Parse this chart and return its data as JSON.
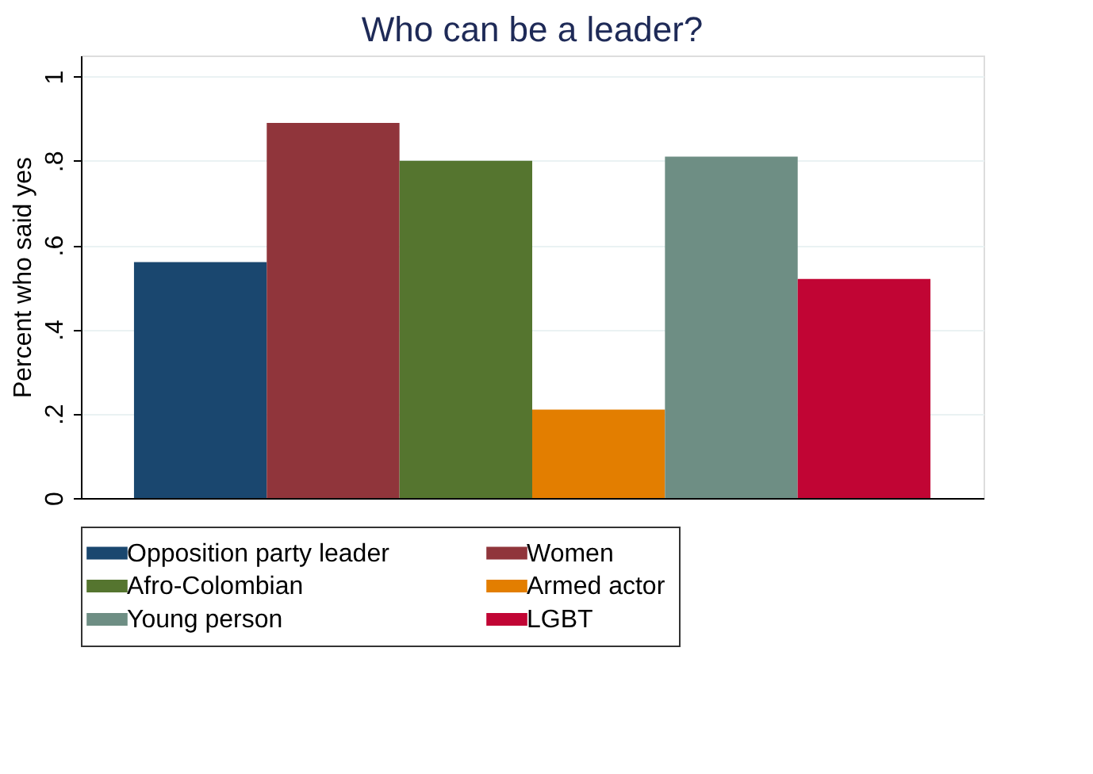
{
  "chart_data": {
    "type": "bar",
    "title": "Who can be a leader?",
    "ylabel": "Percent who said yes",
    "categories": [
      null
    ],
    "series": [
      {
        "name": "Opposition party leader",
        "color": "#1a476f",
        "values": [
          0.56
        ]
      },
      {
        "name": "Women",
        "color": "#90353b",
        "values": [
          0.89
        ]
      },
      {
        "name": "Afro-Colombian",
        "color": "#55752f",
        "values": [
          0.8
        ]
      },
      {
        "name": "Armed actor",
        "color": "#e37e00",
        "values": [
          0.21
        ]
      },
      {
        "name": "Young person",
        "color": "#6e8e84",
        "values": [
          0.81
        ]
      },
      {
        "name": "LGBT",
        "color": "#c10534",
        "values": [
          0.52
        ]
      }
    ],
    "ylim": [
      0,
      1.05
    ],
    "yticks": [
      {
        "value": 0,
        "label": "0"
      },
      {
        "value": 0.2,
        "label": ".2"
      },
      {
        "value": 0.4,
        "label": ".4"
      },
      {
        "value": 0.6,
        "label": ".6"
      },
      {
        "value": 0.8,
        "label": ".8"
      },
      {
        "value": 1,
        "label": "1"
      }
    ],
    "grid": "y",
    "legend": "bottom"
  }
}
